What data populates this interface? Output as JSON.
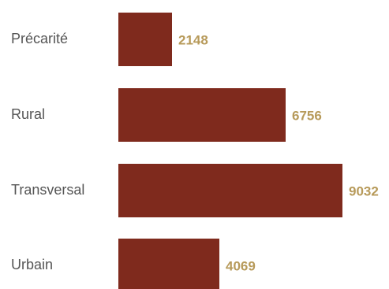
{
  "chart_data": {
    "type": "bar",
    "orientation": "horizontal",
    "categories": [
      "Précarité",
      "Rural",
      "Transversal",
      "Urbain"
    ],
    "values": [
      2148,
      6756,
      9032,
      4069
    ],
    "value_labels": [
      "2148",
      "6756",
      "9032",
      "4069"
    ],
    "title": "",
    "xlabel": "",
    "ylabel": "",
    "xlim": [
      0,
      9032
    ],
    "grid": false,
    "legend": "none"
  },
  "colors": {
    "bar": "#7f2a1d",
    "value_label": "#b79a5a",
    "category_label": "#555555"
  }
}
